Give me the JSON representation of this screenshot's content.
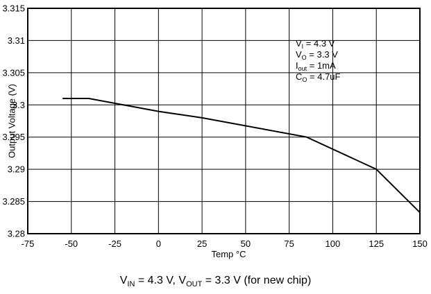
{
  "chart_data": {
    "type": "line",
    "xlabel": "Temp °C",
    "ylabel": "Output Voltage (V)",
    "xlim": [
      -75,
      150
    ],
    "ylim": [
      3.28,
      3.315
    ],
    "xticks": [
      "-75",
      "-50",
      "-25",
      "0",
      "25",
      "50",
      "75",
      "100",
      "125",
      "150"
    ],
    "yticks": [
      "3.28",
      "3.285",
      "3.29",
      "3.295",
      "3.3",
      "3.305",
      "3.31",
      "3.315"
    ],
    "grid": true,
    "series": [
      {
        "x": [
          -55,
          -40,
          0,
          25,
          85,
          125,
          150
        ],
        "y": [
          3.301,
          3.301,
          3.299,
          3.298,
          3.295,
          3.29,
          3.2833
        ]
      }
    ],
    "annotations": [
      {
        "main": "V",
        "sub": "I",
        "rest": " = 4.3 V"
      },
      {
        "main": "V",
        "sub": "O",
        "rest": " = 3.3 V"
      },
      {
        "main": "I",
        "sub": "out",
        "rest": " = 1mA"
      },
      {
        "main": "C",
        "sub": "O",
        "rest": " = 4.7uF"
      }
    ],
    "caption": {
      "p1": "V",
      "s1": "IN",
      "p2": " = 4.3 V, V",
      "s2": "OUT",
      "p3": " = 3.3 V (for new chip)"
    },
    "color": "#000000"
  }
}
